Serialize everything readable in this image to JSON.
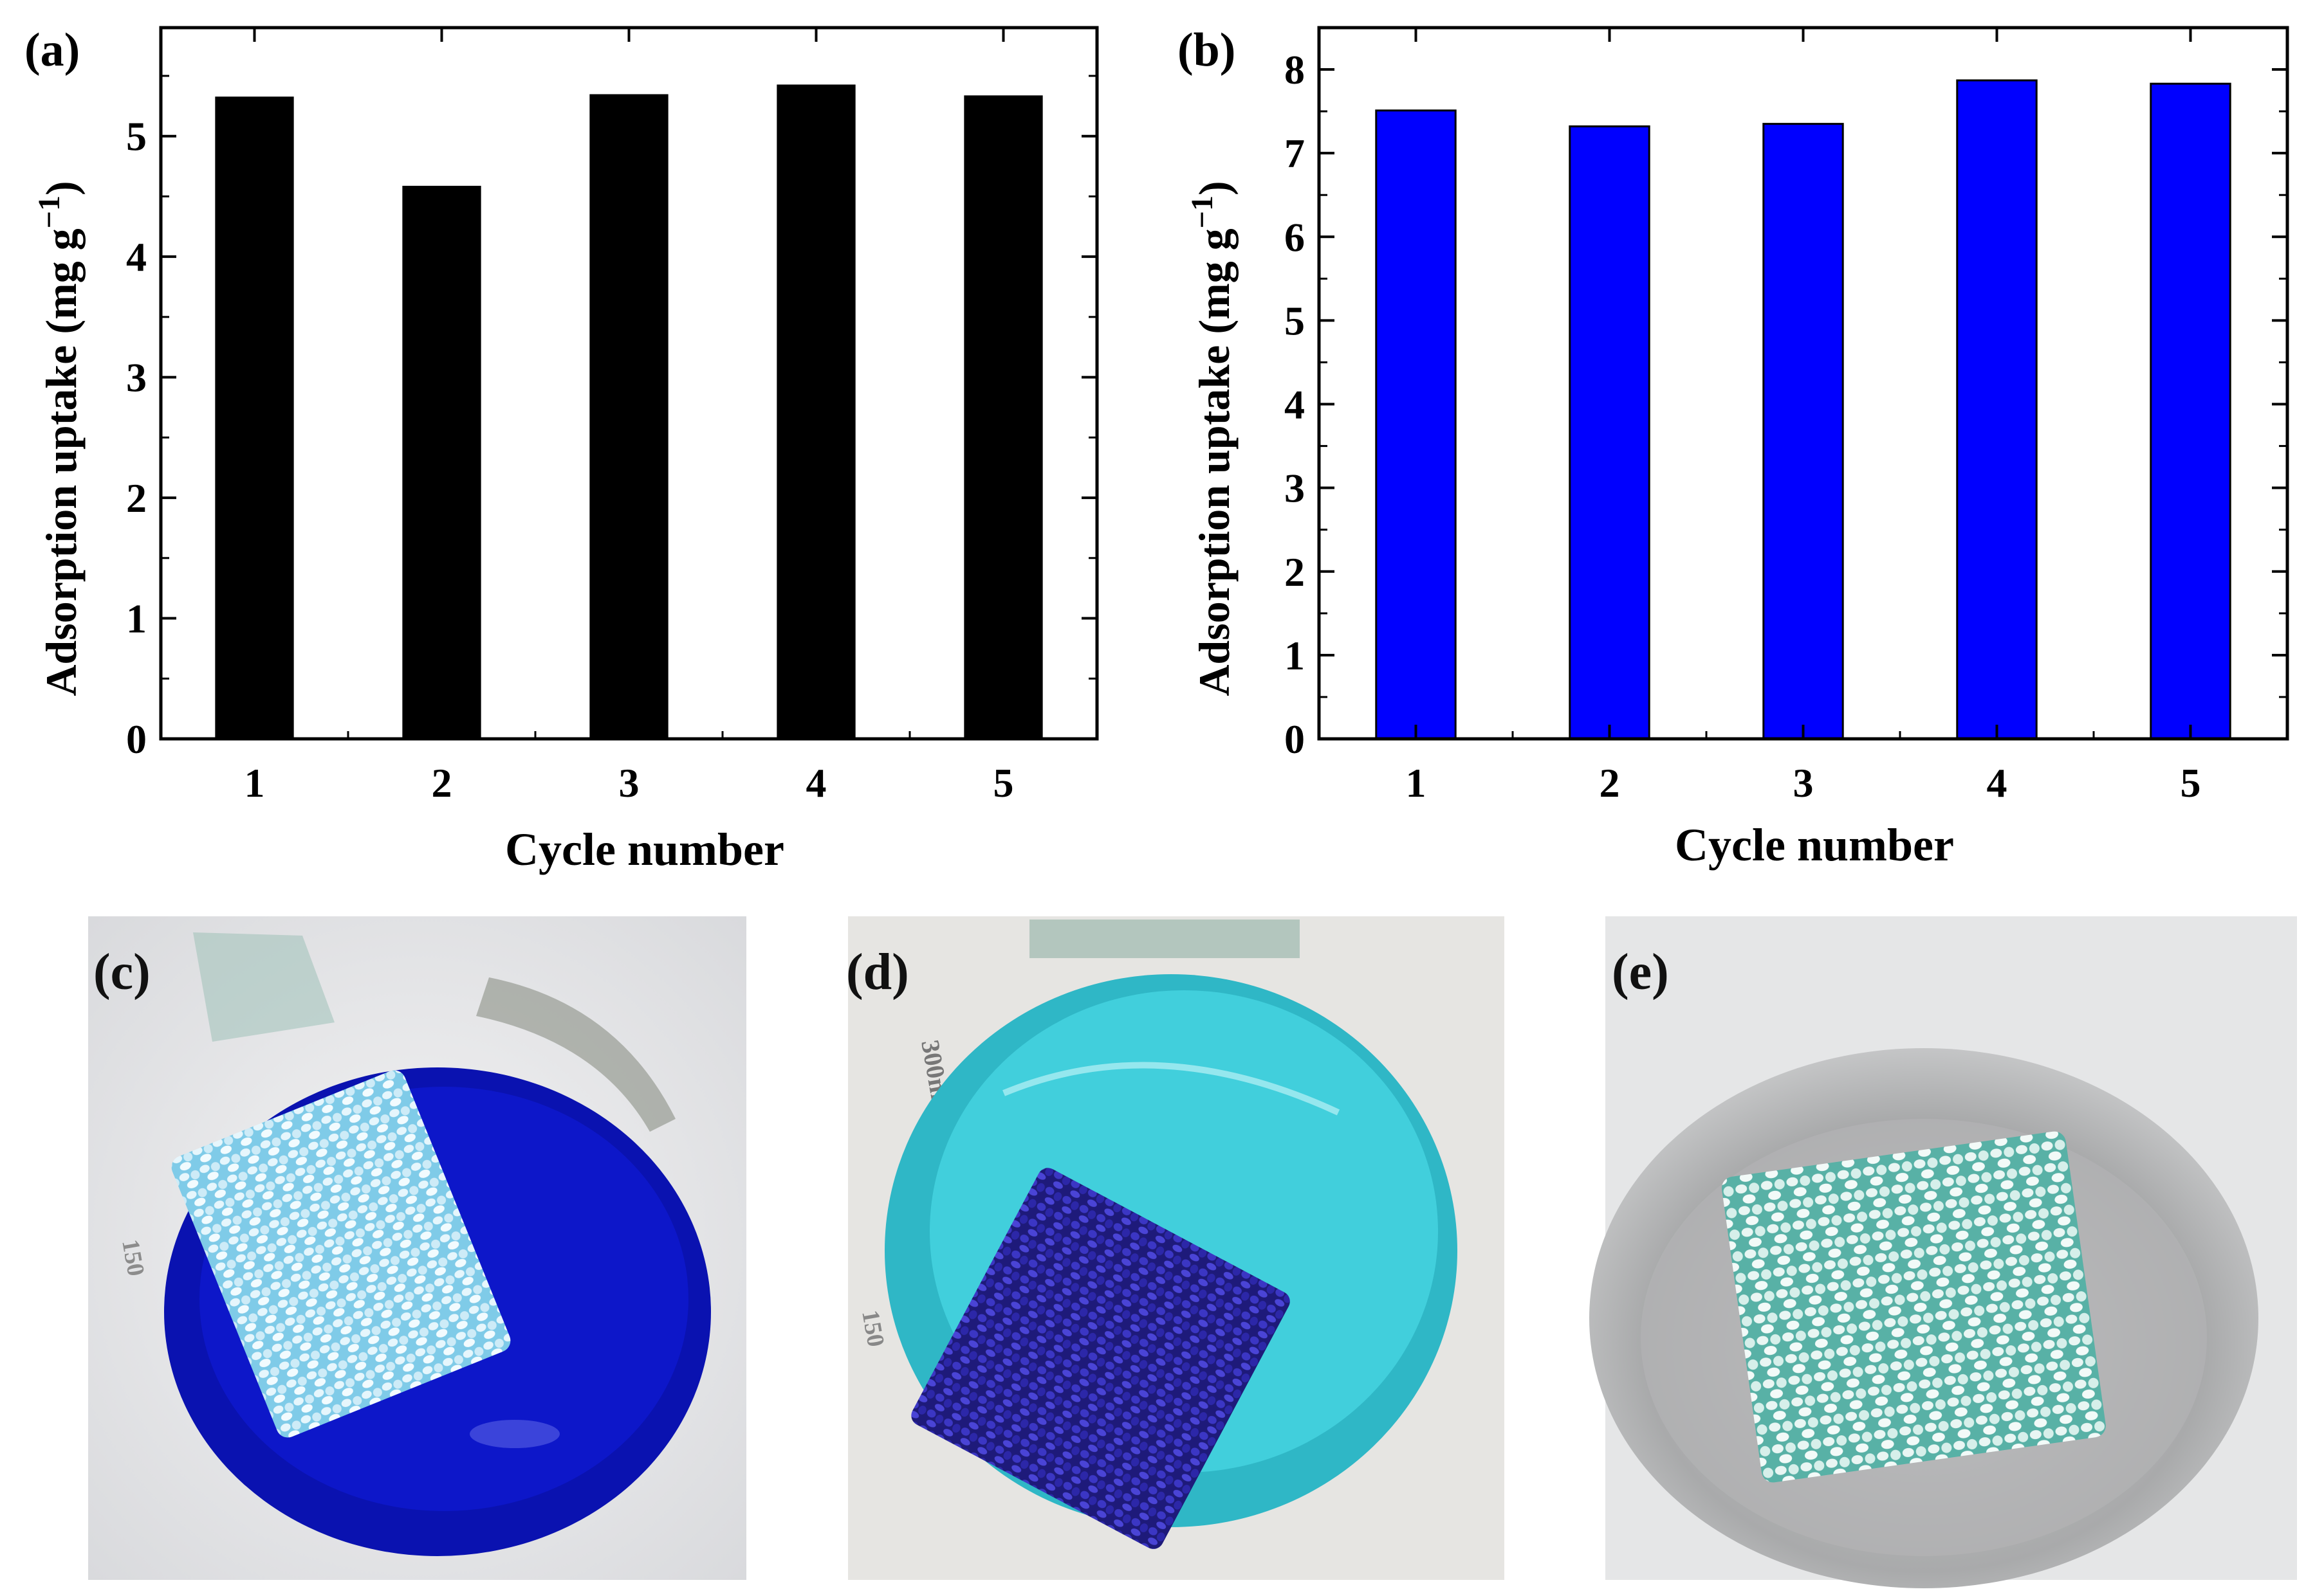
{
  "figure_labels": {
    "a": "(a)",
    "b": "(b)",
    "c": "(c)",
    "d": "(d)",
    "e": "(e)"
  },
  "chart_data": [
    {
      "panel": "(a)",
      "type": "bar",
      "xlabel": "Cycle number",
      "ylabel": "Adsorption uptake (mg g",
      "ylabel_superscript": "−1",
      "ylabel_close": ")",
      "categories": [
        "1",
        "2",
        "3",
        "4",
        "5"
      ],
      "values": [
        5.32,
        4.58,
        5.34,
        5.42,
        5.33
      ],
      "ylim": [
        0,
        5.9
      ],
      "yticks": [
        0,
        1,
        2,
        3,
        4,
        5
      ],
      "bar_color": "#000000",
      "grid": false
    },
    {
      "panel": "(b)",
      "type": "bar",
      "xlabel": "Cycle number",
      "ylabel": "Adsorption uptake (mg g",
      "ylabel_superscript": "−1",
      "ylabel_close": ")",
      "categories": [
        "1",
        "2",
        "3",
        "4",
        "5"
      ],
      "values": [
        7.51,
        7.32,
        7.35,
        7.87,
        7.83
      ],
      "ylim": [
        0,
        8.5
      ],
      "yticks": [
        0,
        1,
        2,
        3,
        4,
        5,
        6,
        7,
        8
      ],
      "bar_color": "#0000ff",
      "grid": false
    }
  ],
  "photos": [
    {
      "panel": "(c)",
      "liquid_color": "#0a12b8",
      "sponge_color": "#8fd4ef",
      "beaker_marks": [
        "150"
      ]
    },
    {
      "panel": "(d)",
      "liquid_color": "#37c8d6",
      "sponge_color": "#2a249a",
      "beaker_marks": [
        "300ml",
        "150"
      ]
    },
    {
      "panel": "(e)",
      "liquid_color": "#cfcfcf",
      "sponge_color": "#7fc9bf",
      "beaker_marks": []
    }
  ]
}
